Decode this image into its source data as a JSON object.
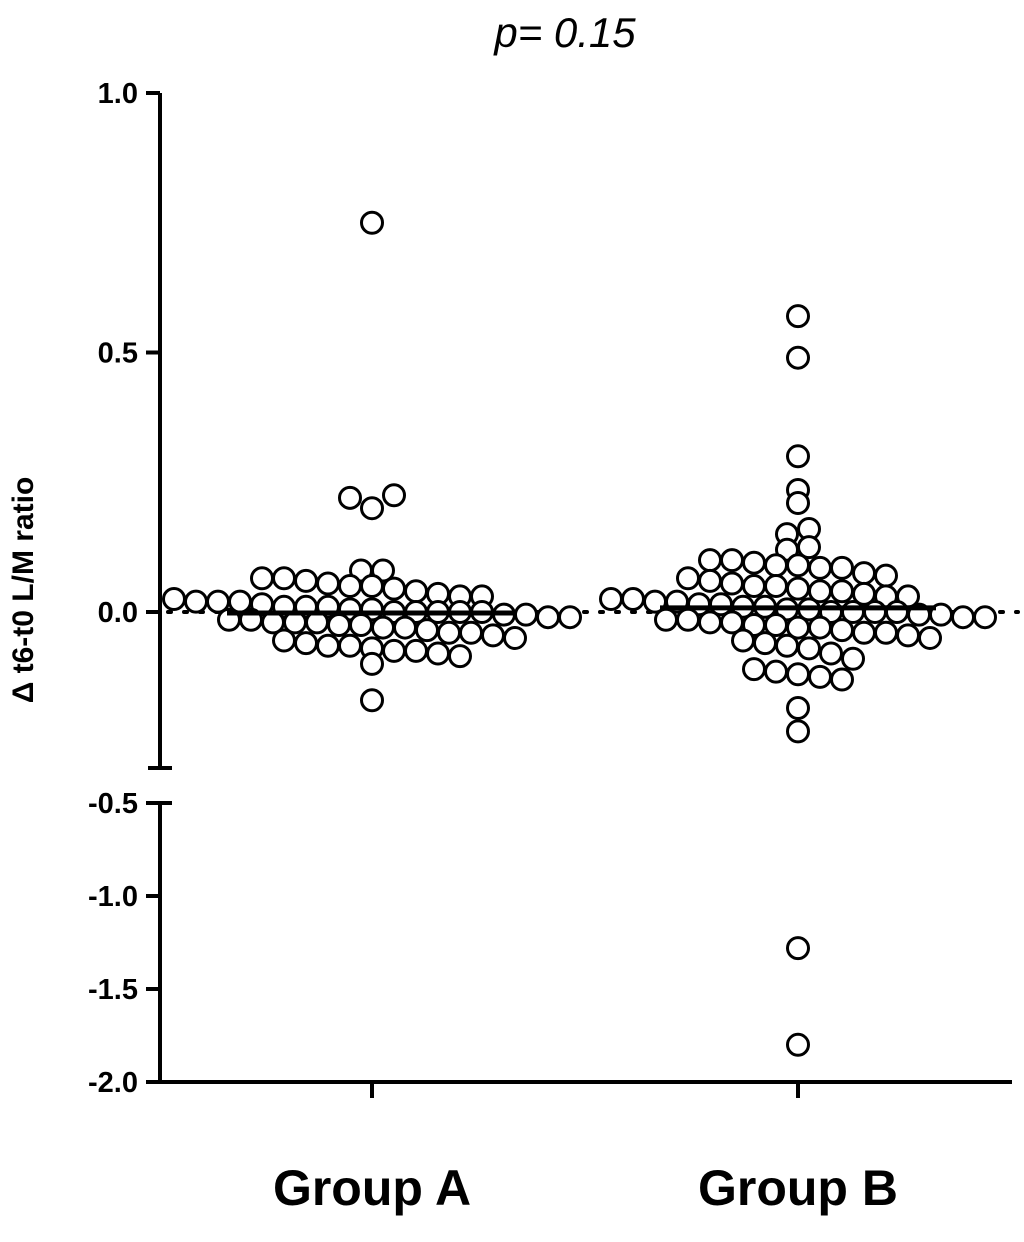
{
  "chart_data": {
    "type": "scatter",
    "title": "p= 0.15",
    "xlabel": "",
    "ylabel": "Δ t6-t0 L/M ratio",
    "categories": [
      "Group A",
      "Group B"
    ],
    "ylim": [
      -2.0,
      1.0
    ],
    "y_axis_break": [
      -0.3,
      -0.37
    ],
    "yticks_upper": [
      "1.0",
      "0.5",
      "0.0"
    ],
    "yticks_lower": [
      "-0.5",
      "-1.0",
      "-1.5",
      "-2.0"
    ],
    "reference_line": 0.0,
    "grid": false,
    "series": [
      {
        "category": "Group A",
        "median": -0.002,
        "values": [
          0.75,
          0.22,
          0.2,
          0.225,
          0.08,
          0.08,
          0.065,
          0.065,
          0.06,
          0.055,
          0.05,
          0.05,
          0.045,
          0.04,
          0.035,
          0.03,
          0.03,
          0.025,
          0.02,
          0.02,
          0.02,
          0.015,
          0.01,
          0.01,
          0.01,
          0.005,
          0.005,
          0.0,
          0.0,
          0.0,
          0.0,
          0.0,
          -0.005,
          -0.005,
          -0.01,
          -0.01,
          -0.015,
          -0.015,
          -0.02,
          -0.02,
          -0.02,
          -0.025,
          -0.025,
          -0.03,
          -0.03,
          -0.035,
          -0.04,
          -0.04,
          -0.045,
          -0.05,
          -0.055,
          -0.06,
          -0.065,
          -0.065,
          -0.07,
          -0.075,
          -0.075,
          -0.08,
          -0.085,
          -0.1,
          -0.17
        ]
      },
      {
        "category": "Group B",
        "median": 0.008,
        "values": [
          0.57,
          0.49,
          0.3,
          0.235,
          0.21,
          0.15,
          0.16,
          0.12,
          0.125,
          0.1,
          0.1,
          0.095,
          0.09,
          0.09,
          0.085,
          0.085,
          0.075,
          0.07,
          0.065,
          0.06,
          0.055,
          0.05,
          0.05,
          0.045,
          0.04,
          0.04,
          0.035,
          0.03,
          0.03,
          0.025,
          0.025,
          0.02,
          0.02,
          0.015,
          0.015,
          0.01,
          0.01,
          0.005,
          0.005,
          0.0,
          0.0,
          0.0,
          0.0,
          -0.005,
          -0.005,
          -0.01,
          -0.01,
          -0.015,
          -0.015,
          -0.02,
          -0.02,
          -0.025,
          -0.025,
          -0.03,
          -0.03,
          -0.035,
          -0.04,
          -0.04,
          -0.045,
          -0.05,
          -0.055,
          -0.06,
          -0.065,
          -0.07,
          -0.08,
          -0.09,
          -0.11,
          -0.115,
          -0.12,
          -0.125,
          -0.13,
          -0.185,
          -0.23,
          -1.28,
          -1.8
        ]
      }
    ]
  }
}
